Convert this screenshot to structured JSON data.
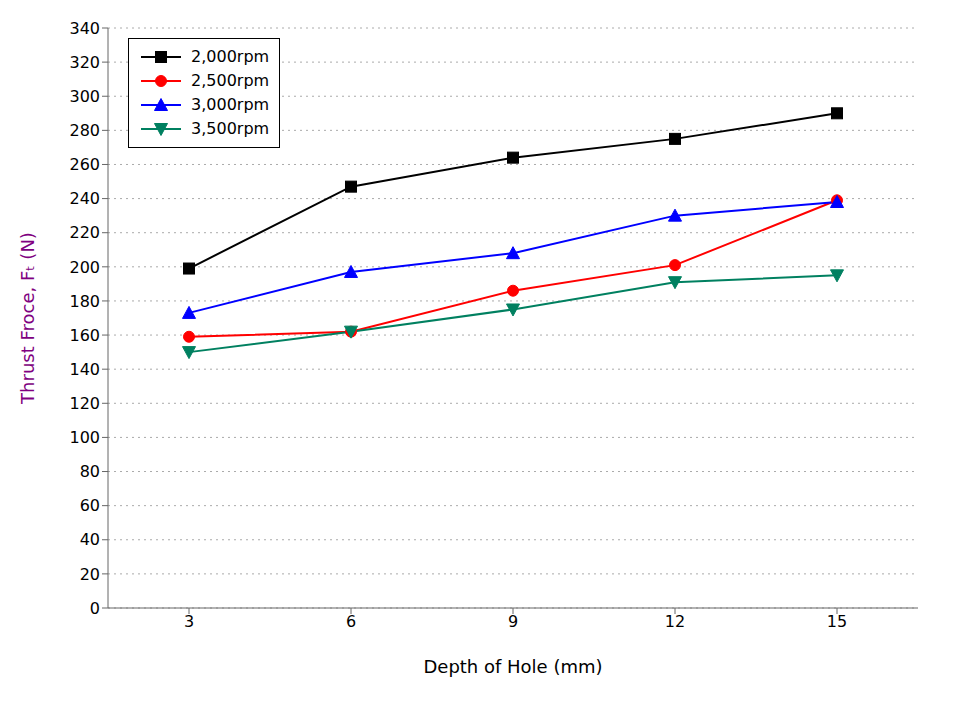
{
  "chart_data": {
    "type": "line",
    "x": [
      3,
      6,
      9,
      12,
      15
    ],
    "series": [
      {
        "name": "2,000rpm",
        "color": "#000000",
        "marker": "square",
        "values": [
          199,
          247,
          264,
          275,
          290
        ]
      },
      {
        "name": "2,500rpm",
        "color": "#ff0000",
        "marker": "circle",
        "values": [
          159,
          162,
          186,
          201,
          239
        ]
      },
      {
        "name": "3,000rpm",
        "color": "#0000ff",
        "marker": "triangle-up",
        "values": [
          173,
          197,
          208,
          230,
          238
        ]
      },
      {
        "name": "3,500rpm",
        "color": "#008060",
        "marker": "triangle-down",
        "values": [
          150,
          162,
          175,
          191,
          195
        ]
      }
    ],
    "xlabel": "Depth of Hole (mm)",
    "ylabel": "Thrust Froce, Fₜ (N)",
    "xlim": [
      1.5,
      16.5
    ],
    "ylim": [
      0,
      340
    ],
    "xticks": [
      3,
      6,
      9,
      12,
      15
    ],
    "yticks": [
      0,
      20,
      40,
      60,
      80,
      100,
      120,
      140,
      160,
      180,
      200,
      220,
      240,
      260,
      280,
      300,
      320,
      340
    ],
    "grid": true,
    "legend": "upper left"
  }
}
